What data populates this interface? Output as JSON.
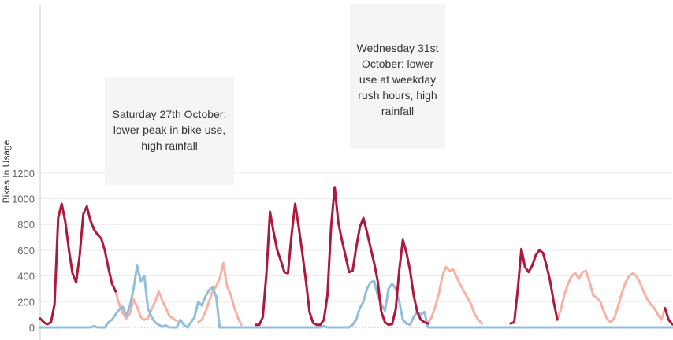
{
  "chart_data": {
    "type": "line",
    "title": "",
    "xlabel": "",
    "ylabel": "Bikes In Usage",
    "ylim": [
      0,
      1250
    ],
    "yticks": [
      0,
      200,
      400,
      600,
      800,
      1000,
      1200
    ],
    "grid": "horizontal",
    "legend": "none",
    "x_unit": "hours (index across the week)",
    "series": [
      {
        "color": "#b0173d",
        "segments": [
          [
            [
              0,
              70
            ],
            [
              1,
              40
            ],
            [
              2,
              25
            ],
            [
              3,
              40
            ],
            [
              4,
              180
            ],
            [
              5,
              850
            ],
            [
              6,
              960
            ],
            [
              7,
              820
            ],
            [
              8,
              600
            ],
            [
              9,
              420
            ],
            [
              10,
              350
            ],
            [
              11,
              560
            ],
            [
              12,
              880
            ],
            [
              13,
              940
            ],
            [
              14,
              830
            ],
            [
              15,
              760
            ],
            [
              16,
              720
            ],
            [
              17,
              690
            ],
            [
              18,
              600
            ],
            [
              19,
              460
            ],
            [
              20,
              340
            ],
            [
              21,
              280
            ]
          ],
          [
            [
              60,
              20
            ],
            [
              61,
              20
            ],
            [
              62,
              80
            ],
            [
              63,
              420
            ],
            [
              64,
              900
            ],
            [
              65,
              740
            ],
            [
              66,
              600
            ],
            [
              67,
              520
            ],
            [
              68,
              430
            ],
            [
              69,
              420
            ],
            [
              70,
              720
            ],
            [
              71,
              960
            ],
            [
              72,
              780
            ],
            [
              73,
              580
            ],
            [
              74,
              360
            ],
            [
              75,
              120
            ],
            [
              76,
              35
            ],
            [
              77,
              20
            ],
            [
              78,
              20
            ],
            [
              79,
              60
            ],
            [
              80,
              250
            ],
            [
              81,
              780
            ],
            [
              82,
              1090
            ],
            [
              83,
              820
            ],
            [
              84,
              680
            ],
            [
              85,
              560
            ],
            [
              86,
              430
            ],
            [
              87,
              440
            ],
            [
              88,
              620
            ],
            [
              89,
              780
            ],
            [
              90,
              850
            ],
            [
              91,
              740
            ],
            [
              92,
              620
            ],
            [
              93,
              500
            ],
            [
              94,
              360
            ],
            [
              95,
              120
            ],
            [
              96,
              40
            ],
            [
              97,
              20
            ],
            [
              98,
              25
            ],
            [
              99,
              140
            ],
            [
              100,
              450
            ],
            [
              101,
              680
            ],
            [
              102,
              580
            ],
            [
              103,
              440
            ],
            [
              104,
              250
            ],
            [
              105,
              120
            ],
            [
              106,
              60
            ],
            [
              107,
              40
            ],
            [
              108,
              30
            ]
          ],
          [
            [
              131,
              30
            ],
            [
              132,
              40
            ],
            [
              133,
              300
            ],
            [
              134,
              610
            ],
            [
              135,
              470
            ],
            [
              136,
              430
            ],
            [
              137,
              480
            ],
            [
              138,
              560
            ],
            [
              139,
              600
            ],
            [
              140,
              580
            ],
            [
              141,
              480
            ],
            [
              142,
              360
            ],
            [
              143,
              200
            ],
            [
              144,
              60
            ]
          ],
          [
            [
              174,
              150
            ],
            [
              175,
              60
            ],
            [
              176,
              25
            ],
            [
              177,
              15
            ]
          ]
        ]
      },
      {
        "color": "#f7b2a4",
        "segments": [
          [
            [
              21,
              280
            ],
            [
              22,
              180
            ],
            [
              23,
              110
            ],
            [
              24,
              70
            ],
            [
              25,
              110
            ],
            [
              26,
              220
            ],
            [
              27,
              160
            ],
            [
              28,
              80
            ],
            [
              29,
              60
            ],
            [
              30,
              70
            ],
            [
              31,
              140
            ],
            [
              32,
              200
            ],
            [
              33,
              280
            ],
            [
              34,
              210
            ],
            [
              35,
              150
            ],
            [
              36,
              90
            ],
            [
              37,
              70
            ],
            [
              38,
              50
            ]
          ],
          [
            [
              44,
              40
            ],
            [
              45,
              60
            ],
            [
              46,
              120
            ],
            [
              47,
              200
            ],
            [
              48,
              280
            ],
            [
              49,
              320
            ],
            [
              50,
              380
            ],
            [
              51,
              500
            ],
            [
              52,
              320
            ],
            [
              53,
              260
            ],
            [
              54,
              160
            ],
            [
              55,
              80
            ],
            [
              56,
              20
            ]
          ],
          [
            [
              108,
              30
            ],
            [
              109,
              80
            ],
            [
              110,
              160
            ],
            [
              111,
              260
            ],
            [
              112,
              400
            ],
            [
              113,
              470
            ],
            [
              114,
              440
            ],
            [
              115,
              450
            ],
            [
              116,
              390
            ],
            [
              117,
              330
            ],
            [
              118,
              280
            ],
            [
              119,
              230
            ],
            [
              120,
              180
            ],
            [
              121,
              100
            ],
            [
              122,
              60
            ],
            [
              123,
              30
            ]
          ],
          [
            [
              144,
              60
            ],
            [
              145,
              140
            ],
            [
              146,
              260
            ],
            [
              147,
              340
            ],
            [
              148,
              400
            ],
            [
              149,
              420
            ],
            [
              150,
              380
            ],
            [
              151,
              430
            ],
            [
              152,
              440
            ],
            [
              153,
              350
            ],
            [
              154,
              250
            ],
            [
              155,
              230
            ],
            [
              156,
              200
            ],
            [
              157,
              120
            ],
            [
              158,
              60
            ],
            [
              159,
              40
            ],
            [
              160,
              80
            ],
            [
              161,
              170
            ],
            [
              162,
              270
            ],
            [
              163,
              350
            ],
            [
              164,
              400
            ],
            [
              165,
              420
            ],
            [
              166,
              400
            ],
            [
              167,
              350
            ],
            [
              168,
              280
            ],
            [
              169,
              220
            ],
            [
              170,
              180
            ],
            [
              171,
              150
            ],
            [
              172,
              100
            ],
            [
              173,
              60
            ],
            [
              174,
              150
            ]
          ]
        ]
      },
      {
        "color": "#8fbfdc",
        "segments": [
          [
            [
              0,
              0
            ],
            [
              14,
              0
            ],
            [
              15,
              10
            ],
            [
              16,
              0
            ],
            [
              18,
              0
            ],
            [
              19,
              40
            ],
            [
              20,
              60
            ],
            [
              21,
              100
            ],
            [
              22,
              140
            ],
            [
              23,
              160
            ],
            [
              24,
              90
            ],
            [
              25,
              170
            ],
            [
              26,
              300
            ],
            [
              27,
              480
            ],
            [
              28,
              360
            ],
            [
              29,
              400
            ],
            [
              30,
              150
            ],
            [
              31,
              80
            ],
            [
              32,
              40
            ],
            [
              33,
              20
            ],
            [
              34,
              5
            ],
            [
              35,
              15
            ],
            [
              36,
              0
            ],
            [
              38,
              0
            ],
            [
              39,
              60
            ],
            [
              40,
              20
            ],
            [
              41,
              0
            ],
            [
              42,
              40
            ],
            [
              43,
              80
            ],
            [
              44,
              200
            ],
            [
              45,
              170
            ],
            [
              46,
              240
            ],
            [
              47,
              290
            ],
            [
              48,
              310
            ],
            [
              49,
              240
            ],
            [
              50,
              0
            ],
            [
              78,
              0
            ],
            [
              79,
              10
            ],
            [
              80,
              0
            ],
            [
              86,
              0
            ],
            [
              87,
              20
            ],
            [
              88,
              60
            ],
            [
              89,
              150
            ],
            [
              90,
              200
            ],
            [
              91,
              300
            ],
            [
              92,
              350
            ],
            [
              93,
              360
            ],
            [
              94,
              250
            ],
            [
              95,
              180
            ],
            [
              96,
              130
            ],
            [
              97,
              300
            ],
            [
              98,
              340
            ],
            [
              99,
              300
            ],
            [
              100,
              200
            ],
            [
              101,
              60
            ],
            [
              102,
              30
            ],
            [
              103,
              20
            ],
            [
              104,
              80
            ],
            [
              105,
              120
            ],
            [
              106,
              100
            ],
            [
              107,
              120
            ],
            [
              108,
              0
            ],
            [
              176,
              0
            ]
          ]
        ]
      }
    ]
  },
  "annotations": [
    {
      "text": "Saturday 27th October:\nlower peak in bike use,\nhigh rainfall"
    },
    {
      "text": "Wednesday 31st\nOctober: lower\nuse at weekday\nrush hours, high\nrainfall"
    }
  ]
}
